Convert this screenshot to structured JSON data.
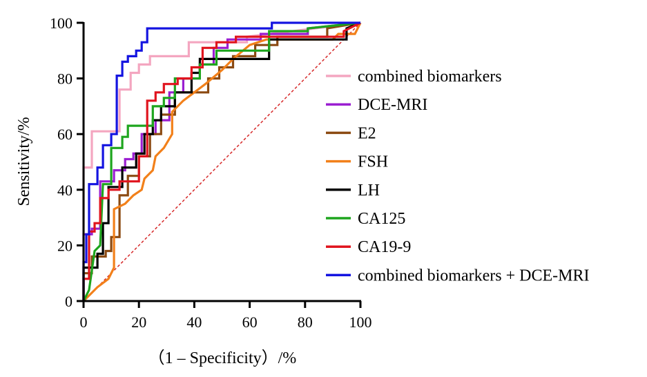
{
  "chart_data": {
    "type": "line",
    "title": "",
    "xlabel": "（1 – Specificity）/%",
    "ylabel": "Sensitivity/%",
    "xlim": [
      0,
      100
    ],
    "ylim": [
      0,
      100
    ],
    "xticks": [
      "0",
      "20",
      "40",
      "60",
      "80",
      "100"
    ],
    "yticks": [
      "0",
      "20",
      "40",
      "60",
      "80",
      "100"
    ],
    "grid": false,
    "legend_position": "right",
    "reference_line": {
      "style": "dashed",
      "color": "#d62728",
      "from": [
        0,
        0
      ],
      "to": [
        100,
        100
      ]
    },
    "series": [
      {
        "name": "combined biomarkers",
        "color": "#f4a6c0",
        "points": [
          [
            0,
            0
          ],
          [
            0,
            48
          ],
          [
            3,
            48
          ],
          [
            3,
            61
          ],
          [
            13,
            61
          ],
          [
            13,
            76
          ],
          [
            17,
            76
          ],
          [
            17,
            82
          ],
          [
            20,
            82
          ],
          [
            20,
            85
          ],
          [
            24,
            85
          ],
          [
            24,
            88
          ],
          [
            38,
            88
          ],
          [
            38,
            93
          ],
          [
            59,
            93
          ],
          [
            59,
            95
          ],
          [
            100,
            100
          ]
        ]
      },
      {
        "name": "DCE-MRI",
        "color": "#9b1fd1",
        "points": [
          [
            0,
            0
          ],
          [
            0,
            24
          ],
          [
            3,
            24
          ],
          [
            3,
            26
          ],
          [
            6,
            26
          ],
          [
            6,
            43
          ],
          [
            11,
            43
          ],
          [
            11,
            47
          ],
          [
            15,
            47
          ],
          [
            15,
            51
          ],
          [
            18,
            51
          ],
          [
            18,
            53
          ],
          [
            21,
            53
          ],
          [
            21,
            60
          ],
          [
            26,
            60
          ],
          [
            26,
            65
          ],
          [
            31,
            65
          ],
          [
            31,
            75
          ],
          [
            36,
            75
          ],
          [
            36,
            80
          ],
          [
            42,
            80
          ],
          [
            42,
            85
          ],
          [
            47,
            85
          ],
          [
            47,
            91
          ],
          [
            52,
            91
          ],
          [
            52,
            94
          ],
          [
            64,
            94
          ],
          [
            64,
            96
          ],
          [
            81,
            96
          ],
          [
            81,
            98
          ],
          [
            100,
            100
          ]
        ]
      },
      {
        "name": "E2",
        "color": "#8b4a12",
        "points": [
          [
            0,
            0
          ],
          [
            0,
            10
          ],
          [
            3,
            10
          ],
          [
            3,
            16
          ],
          [
            8,
            16
          ],
          [
            8,
            18
          ],
          [
            10,
            18
          ],
          [
            10,
            23
          ],
          [
            13,
            23
          ],
          [
            13,
            38
          ],
          [
            16,
            38
          ],
          [
            16,
            45
          ],
          [
            20,
            45
          ],
          [
            20,
            52
          ],
          [
            24,
            52
          ],
          [
            24,
            60
          ],
          [
            28,
            60
          ],
          [
            28,
            67
          ],
          [
            33,
            67
          ],
          [
            33,
            75
          ],
          [
            45,
            75
          ],
          [
            45,
            80
          ],
          [
            49,
            80
          ],
          [
            49,
            84
          ],
          [
            54,
            84
          ],
          [
            54,
            88
          ],
          [
            62,
            88
          ],
          [
            62,
            92
          ],
          [
            70,
            92
          ],
          [
            70,
            95
          ],
          [
            88,
            95
          ],
          [
            88,
            98
          ],
          [
            100,
            100
          ]
        ]
      },
      {
        "name": "FSH",
        "color": "#f2801a",
        "points": [
          [
            0,
            0
          ],
          [
            5,
            5
          ],
          [
            9,
            8
          ],
          [
            11,
            12
          ],
          [
            11,
            33
          ],
          [
            15,
            35
          ],
          [
            18,
            38
          ],
          [
            21,
            40
          ],
          [
            22,
            44
          ],
          [
            25,
            47
          ],
          [
            26,
            52
          ],
          [
            29,
            55
          ],
          [
            32,
            60
          ],
          [
            32,
            68
          ],
          [
            36,
            72
          ],
          [
            40,
            75
          ],
          [
            44,
            78
          ],
          [
            50,
            83
          ],
          [
            54,
            87
          ],
          [
            60,
            92
          ],
          [
            66,
            94
          ],
          [
            90,
            94
          ],
          [
            92,
            96
          ],
          [
            98,
            96
          ],
          [
            100,
            100
          ]
        ]
      },
      {
        "name": "LH",
        "color": "#000000",
        "points": [
          [
            0,
            0
          ],
          [
            0,
            12
          ],
          [
            5,
            12
          ],
          [
            5,
            17
          ],
          [
            7,
            17
          ],
          [
            7,
            28
          ],
          [
            9,
            28
          ],
          [
            9,
            41
          ],
          [
            14,
            41
          ],
          [
            14,
            48
          ],
          [
            19,
            48
          ],
          [
            19,
            53
          ],
          [
            22,
            53
          ],
          [
            22,
            60
          ],
          [
            25,
            60
          ],
          [
            25,
            65
          ],
          [
            28,
            65
          ],
          [
            28,
            70
          ],
          [
            33,
            70
          ],
          [
            33,
            75
          ],
          [
            39,
            75
          ],
          [
            39,
            82
          ],
          [
            42,
            82
          ],
          [
            42,
            87
          ],
          [
            67,
            87
          ],
          [
            67,
            94
          ],
          [
            95,
            94
          ],
          [
            95,
            98
          ],
          [
            100,
            100
          ]
        ]
      },
      {
        "name": "CA125",
        "color": "#1ea51e",
        "points": [
          [
            0,
            0
          ],
          [
            2,
            4
          ],
          [
            4,
            18
          ],
          [
            6,
            20
          ],
          [
            7,
            42
          ],
          [
            10,
            42
          ],
          [
            10,
            55
          ],
          [
            14,
            55
          ],
          [
            14,
            59
          ],
          [
            16,
            59
          ],
          [
            16,
            63
          ],
          [
            25,
            63
          ],
          [
            25,
            70
          ],
          [
            29,
            70
          ],
          [
            29,
            73
          ],
          [
            33,
            73
          ],
          [
            33,
            80
          ],
          [
            42,
            80
          ],
          [
            42,
            85
          ],
          [
            48,
            85
          ],
          [
            48,
            90
          ],
          [
            67,
            90
          ],
          [
            67,
            97
          ],
          [
            81,
            97
          ],
          [
            81,
            98
          ],
          [
            100,
            100
          ]
        ]
      },
      {
        "name": "CA19-9",
        "color": "#e0141e",
        "points": [
          [
            0,
            0
          ],
          [
            0,
            8
          ],
          [
            2,
            8
          ],
          [
            2,
            25
          ],
          [
            4,
            25
          ],
          [
            4,
            28
          ],
          [
            6,
            28
          ],
          [
            6,
            37
          ],
          [
            9,
            37
          ],
          [
            9,
            40
          ],
          [
            13,
            40
          ],
          [
            13,
            43
          ],
          [
            20,
            43
          ],
          [
            20,
            52
          ],
          [
            23,
            52
          ],
          [
            23,
            72
          ],
          [
            26,
            72
          ],
          [
            26,
            75
          ],
          [
            29,
            75
          ],
          [
            29,
            78
          ],
          [
            34,
            78
          ],
          [
            34,
            80
          ],
          [
            39,
            80
          ],
          [
            39,
            84
          ],
          [
            43,
            84
          ],
          [
            43,
            91
          ],
          [
            48,
            91
          ],
          [
            48,
            93
          ],
          [
            55,
            93
          ],
          [
            55,
            95
          ],
          [
            94,
            95
          ],
          [
            94,
            97
          ],
          [
            100,
            100
          ]
        ]
      },
      {
        "name": "combined biomarkers + DCE-MRI",
        "color": "#1414e0",
        "points": [
          [
            0,
            0
          ],
          [
            0,
            14
          ],
          [
            1,
            14
          ],
          [
            1,
            24
          ],
          [
            2,
            24
          ],
          [
            2,
            42
          ],
          [
            5,
            42
          ],
          [
            5,
            48
          ],
          [
            7,
            48
          ],
          [
            7,
            56
          ],
          [
            10,
            56
          ],
          [
            10,
            60
          ],
          [
            12,
            60
          ],
          [
            12,
            81
          ],
          [
            14,
            81
          ],
          [
            14,
            86
          ],
          [
            16,
            86
          ],
          [
            16,
            88
          ],
          [
            19,
            88
          ],
          [
            19,
            90
          ],
          [
            21,
            90
          ],
          [
            21,
            93
          ],
          [
            23,
            93
          ],
          [
            23,
            98
          ],
          [
            68,
            98
          ],
          [
            68,
            100
          ],
          [
            100,
            100
          ]
        ]
      }
    ]
  }
}
